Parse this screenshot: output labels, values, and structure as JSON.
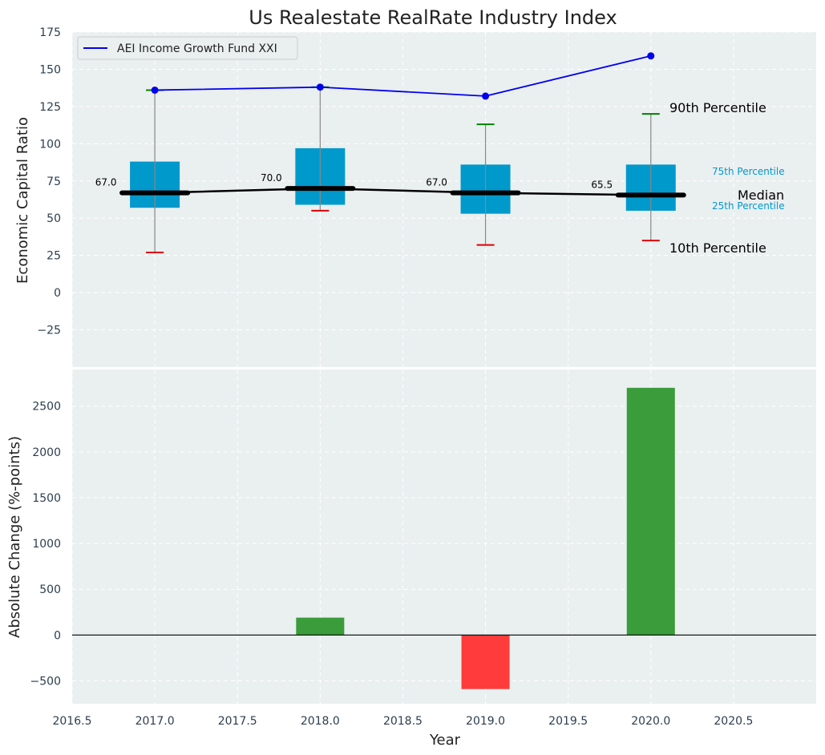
{
  "chart_data": [
    {
      "type": "box",
      "title": "Us Realestate RealRate Industry Index",
      "ylabel": "Economic Capital Ratio",
      "xlim": [
        2016.5,
        2021.0
      ],
      "ylim": [
        -50,
        175
      ],
      "yticks": [
        -25,
        0,
        25,
        50,
        75,
        100,
        125,
        150,
        175
      ],
      "grid": true,
      "legend_position": "top-left",
      "boxes": [
        {
          "x": 2017,
          "p10": 27,
          "p25": 57,
          "median": 67,
          "p75": 88,
          "p90": 136,
          "median_label": "67.0"
        },
        {
          "x": 2018,
          "p10": 55,
          "p25": 59,
          "median": 70,
          "p75": 97,
          "p90": 138,
          "median_label": "70.0"
        },
        {
          "x": 2019,
          "p10": 32,
          "p25": 53,
          "median": 67,
          "p75": 86,
          "p90": 113,
          "median_label": "67.0"
        },
        {
          "x": 2020,
          "p10": 35,
          "p25": 55,
          "median": 65.5,
          "p75": 86,
          "p90": 120,
          "median_label": "65.5"
        }
      ],
      "series": [
        {
          "name": "AEI Income Growth Fund XXI",
          "color": "#0000ee",
          "x": [
            2017,
            2018,
            2019,
            2020
          ],
          "values": [
            136,
            138,
            132,
            159
          ]
        }
      ],
      "annotations": {
        "p90": "90th Percentile",
        "p75": "75th Percentile",
        "median": "Median",
        "p25": "25th Percentile",
        "p10": "10th Percentile"
      },
      "colors": {
        "box": "#0099cc",
        "median": "#000000",
        "p90_cap": "#008000",
        "p10_cap": "#dd0000",
        "background": "#eaeff0"
      }
    },
    {
      "type": "bar",
      "xlabel": "Year",
      "ylabel": "Absolute Change (%-points)",
      "xlim": [
        2016.5,
        2021.0
      ],
      "ylim": [
        -750,
        2900
      ],
      "yticks": [
        -500,
        0,
        500,
        1000,
        1500,
        2000,
        2500
      ],
      "xticks": [
        "2016.5",
        "2017.0",
        "2017.5",
        "2018.0",
        "2018.5",
        "2019.0",
        "2019.5",
        "2020.0",
        "2020.5"
      ],
      "grid": true,
      "x": [
        2018,
        2019,
        2020
      ],
      "values": [
        190,
        -590,
        2700
      ],
      "colors": {
        "positive": "#3a9c3a",
        "negative": "#ff3b3b"
      }
    }
  ]
}
